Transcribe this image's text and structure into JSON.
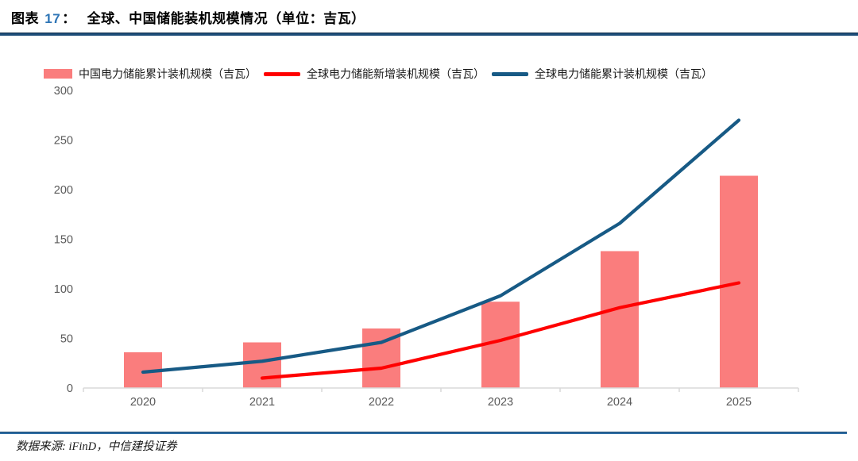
{
  "header": {
    "label_prefix": "图表",
    "figure_number": "17",
    "colon": "：",
    "title": "全球、中国储能装机规模情况（单位：吉瓦）"
  },
  "legend": [
    {
      "label": "中国电力储能累计装机规模（吉瓦）",
      "type": "bar",
      "color": "#FA7D7D"
    },
    {
      "label": "全球电力储能新增装机规模（吉瓦）",
      "type": "line",
      "color": "#FF0000"
    },
    {
      "label": "全球电力储能累计装机规模（吉瓦）",
      "type": "line",
      "color": "#175A85"
    }
  ],
  "chart_data": {
    "type": "combo",
    "categories": [
      "2020",
      "2021",
      "2022",
      "2023",
      "2024",
      "2025"
    ],
    "series": [
      {
        "name": "中国电力储能累计装机规模（吉瓦）",
        "type": "bar",
        "color": "#FA7D7D",
        "values": [
          36,
          46,
          60,
          87,
          138,
          214
        ]
      },
      {
        "name": "全球电力储能新增装机规模（吉瓦）",
        "type": "line",
        "color": "#FF0000",
        "values": [
          null,
          10,
          20,
          48,
          81,
          106
        ]
      },
      {
        "name": "全球电力储能累计装机规模（吉瓦）",
        "type": "line",
        "color": "#175A85",
        "values": [
          16,
          27,
          46,
          93,
          166,
          270
        ]
      }
    ],
    "title": "全球、中国储能装机规模情况",
    "unit": "吉瓦",
    "xlabel": "",
    "ylabel": "",
    "ylim": [
      0,
      300
    ],
    "y_ticks": [
      0,
      50,
      100,
      150,
      200,
      250,
      300
    ],
    "grid": false,
    "legend_position": "top",
    "axis_color": "#D9D9D9",
    "tick_label_color": "#595959"
  },
  "footer": {
    "source": "数据来源: iFinD，中信建投证券"
  },
  "colors": {
    "header_rule": "#1E4E79",
    "footer_rule": "#2E6DA4",
    "figure_number": "#2E75B6"
  }
}
